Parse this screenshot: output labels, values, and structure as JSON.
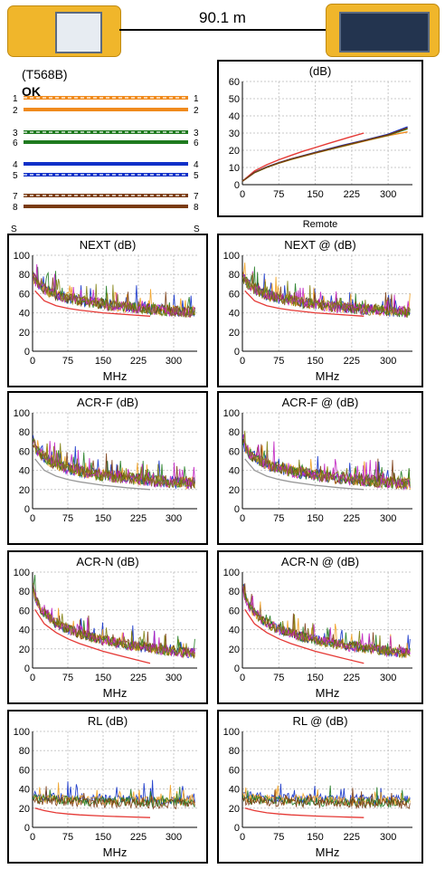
{
  "header": {
    "cable_length": "90.1 m"
  },
  "wiremap": {
    "standard": "(T568B)",
    "status": "OK",
    "pins_left": [
      "1",
      "2",
      "3",
      "6",
      "4",
      "5",
      "7",
      "8"
    ],
    "pins_right": [
      "1",
      "2",
      "3",
      "6",
      "4",
      "5",
      "7",
      "8"
    ],
    "shield_left": "S",
    "shield_right": "S"
  },
  "remote_caption": "Remote",
  "colors": {
    "orange": "#f08a1c",
    "green": "#1f7a1f",
    "blue": "#1030c8",
    "brown": "#7a3b12",
    "limit": "#e53935",
    "limit_gray": "#9a9a9a"
  },
  "chart_data": [
    {
      "id": "insertion-loss",
      "type": "line",
      "title": "(dB)",
      "xlabel": "",
      "ylabel": "",
      "xlim": [
        0,
        350
      ],
      "ylim": [
        0,
        60
      ],
      "yticks": [
        "0",
        "10",
        "20",
        "30",
        "40",
        "50",
        "60"
      ],
      "xticks": [
        "0",
        "75",
        "150",
        "225",
        "300"
      ],
      "grid": true,
      "series": [
        {
          "color": "#e53935",
          "x": [
            0,
            25,
            50,
            75,
            100,
            125,
            150,
            175,
            200,
            225,
            250
          ],
          "y": [
            2,
            8,
            11.6,
            14.5,
            17,
            19.4,
            21.6,
            23.8,
            25.9,
            28,
            30
          ]
        },
        {
          "color": "#1030c8",
          "x": [
            0,
            25,
            50,
            75,
            100,
            150,
            200,
            250,
            300,
            340
          ],
          "y": [
            2,
            7.2,
            10.3,
            12.8,
            15,
            18.8,
            22.5,
            25.8,
            29.3,
            33.6
          ]
        },
        {
          "color": "#f08a1c",
          "x": [
            0,
            25,
            50,
            75,
            100,
            150,
            200,
            250,
            300,
            340
          ],
          "y": [
            2,
            7,
            10,
            12.5,
            14.6,
            18.3,
            21.8,
            25.2,
            28.5,
            30.7
          ]
        },
        {
          "color": "#1f7a1f",
          "x": [
            0,
            25,
            50,
            75,
            100,
            150,
            200,
            250,
            300,
            340
          ],
          "y": [
            2,
            7,
            10.1,
            12.6,
            14.8,
            18.5,
            22,
            25.5,
            28.8,
            32.5
          ]
        },
        {
          "color": "#7a3b12",
          "x": [
            0,
            25,
            50,
            75,
            100,
            150,
            200,
            250,
            300,
            340
          ],
          "y": [
            2,
            7.1,
            10.2,
            12.7,
            14.9,
            18.6,
            22.2,
            25.6,
            29,
            33
          ]
        }
      ]
    },
    {
      "id": "next",
      "type": "line",
      "title": "NEXT (dB)",
      "xlabel": "MHz",
      "xlim": [
        0,
        350
      ],
      "ylim": [
        0,
        100
      ],
      "yticks": [
        "0",
        "20",
        "40",
        "60",
        "80",
        "100"
      ],
      "xticks": [
        "0",
        "75",
        "150",
        "225",
        "300"
      ],
      "grid": true,
      "noise": "next",
      "limit": {
        "color": "#e53935",
        "x": [
          5,
          25,
          50,
          75,
          100,
          150,
          200,
          250
        ],
        "y": [
          63,
          52.5,
          47.5,
          44.7,
          42.8,
          40,
          38.2,
          36.5
        ]
      }
    },
    {
      "id": "next-remote",
      "type": "line",
      "title": "NEXT @ (dB)",
      "xlabel": "MHz",
      "xlim": [
        0,
        350
      ],
      "ylim": [
        0,
        100
      ],
      "yticks": [
        "0",
        "20",
        "40",
        "60",
        "80",
        "100"
      ],
      "xticks": [
        "0",
        "75",
        "150",
        "225",
        "300"
      ],
      "grid": true,
      "noise": "next",
      "limit": {
        "color": "#e53935",
        "x": [
          5,
          25,
          50,
          75,
          100,
          150,
          200,
          250
        ],
        "y": [
          63,
          52.5,
          47.5,
          44.7,
          42.8,
          40,
          38.2,
          36.5
        ]
      }
    },
    {
      "id": "acr-f",
      "type": "line",
      "title": "ACR-F (dB)",
      "xlabel": "",
      "xlim": [
        0,
        350
      ],
      "ylim": [
        0,
        100
      ],
      "yticks": [
        "0",
        "20",
        "40",
        "60",
        "80",
        "100"
      ],
      "xticks": [
        "0",
        "75",
        "150",
        "225",
        "300"
      ],
      "grid": true,
      "noise": "acrf",
      "limit": {
        "color": "#9a9a9a",
        "x": [
          5,
          25,
          50,
          75,
          100,
          150,
          200,
          250
        ],
        "y": [
          52,
          40,
          34,
          30.5,
          28,
          24.4,
          21.9,
          20
        ]
      }
    },
    {
      "id": "acr-f-remote",
      "type": "line",
      "title": "ACR-F @ (dB)",
      "xlabel": "",
      "xlim": [
        0,
        350
      ],
      "ylim": [
        0,
        100
      ],
      "yticks": [
        "0",
        "20",
        "40",
        "60",
        "80",
        "100"
      ],
      "xticks": [
        "0",
        "75",
        "150",
        "225",
        "300"
      ],
      "grid": true,
      "noise": "acrf",
      "limit": {
        "color": "#9a9a9a",
        "x": [
          5,
          25,
          50,
          75,
          100,
          150,
          200,
          250
        ],
        "y": [
          52,
          40,
          34,
          30.5,
          28,
          24.4,
          21.9,
          20
        ]
      }
    },
    {
      "id": "acr-n",
      "type": "line",
      "title": "ACR-N (dB)",
      "xlabel": "MHz",
      "xlim": [
        0,
        350
      ],
      "ylim": [
        0,
        100
      ],
      "yticks": [
        "0",
        "20",
        "40",
        "60",
        "80",
        "100"
      ],
      "xticks": [
        "0",
        "75",
        "150",
        "225",
        "300"
      ],
      "grid": true,
      "noise": "acrn",
      "limit": {
        "color": "#e53935",
        "x": [
          5,
          25,
          50,
          75,
          100,
          150,
          200,
          250
        ],
        "y": [
          61,
          46,
          37,
          30.5,
          25.5,
          17.5,
          11,
          5
        ]
      }
    },
    {
      "id": "acr-n-remote",
      "type": "line",
      "title": "ACR-N @ (dB)",
      "xlabel": "MHz",
      "xlim": [
        0,
        350
      ],
      "ylim": [
        0,
        100
      ],
      "yticks": [
        "0",
        "20",
        "40",
        "60",
        "80",
        "100"
      ],
      "xticks": [
        "0",
        "75",
        "150",
        "225",
        "300"
      ],
      "grid": true,
      "noise": "acrn",
      "limit": {
        "color": "#e53935",
        "x": [
          5,
          25,
          50,
          75,
          100,
          150,
          200,
          250
        ],
        "y": [
          61,
          46,
          37,
          30.5,
          25.5,
          17.5,
          11,
          5
        ]
      }
    },
    {
      "id": "rl",
      "type": "line",
      "title": "RL (dB)",
      "xlabel": "MHz",
      "xlim": [
        0,
        350
      ],
      "ylim": [
        0,
        100
      ],
      "yticks": [
        "0",
        "20",
        "40",
        "60",
        "80",
        "100"
      ],
      "xticks": [
        "0",
        "75",
        "150",
        "225",
        "300"
      ],
      "grid": true,
      "noise": "rl",
      "limit": {
        "color": "#e53935",
        "x": [
          5,
          25,
          50,
          75,
          100,
          150,
          200,
          250
        ],
        "y": [
          20,
          17.5,
          15.2,
          14,
          13,
          11.8,
          10.9,
          10.2
        ]
      }
    },
    {
      "id": "rl-remote",
      "type": "line",
      "title": "RL @ (dB)",
      "xlabel": "MHz",
      "xlim": [
        0,
        350
      ],
      "ylim": [
        0,
        100
      ],
      "yticks": [
        "0",
        "20",
        "40",
        "60",
        "80",
        "100"
      ],
      "xticks": [
        "0",
        "75",
        "150",
        "225",
        "300"
      ],
      "grid": true,
      "noise": "rl",
      "limit": {
        "color": "#e53935",
        "x": [
          5,
          25,
          50,
          75,
          100,
          150,
          200,
          250
        ],
        "y": [
          20,
          17.5,
          15.2,
          14,
          13,
          11.8,
          10.9,
          10.2
        ]
      }
    }
  ]
}
